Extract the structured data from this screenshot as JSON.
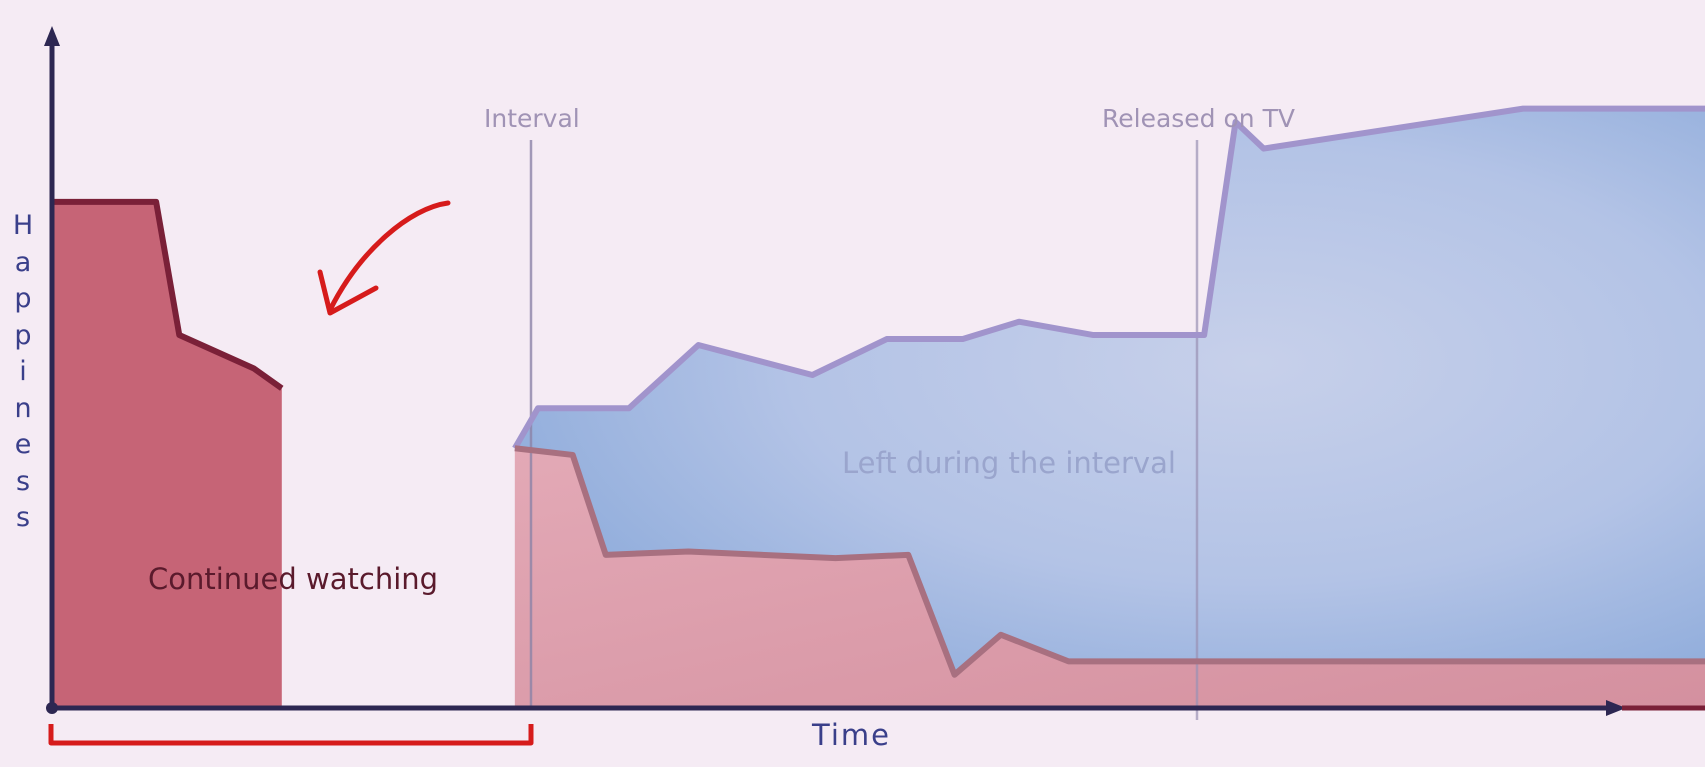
{
  "chart_data": {
    "type": "area",
    "xlabel": "Time",
    "ylabel": "Happiness",
    "annotations": [
      "Interval",
      "Released on TV"
    ],
    "regions": {
      "continued": "Continued watching",
      "left": "Left during the interval"
    },
    "series": [
      {
        "key": "continued",
        "x": [
          0,
          6.3,
          7.7,
          12.2,
          13.9,
          13.9,
          14.3,
          19.1,
          22.4,
          26.8,
          33.1,
          36.1,
          58.6,
          68.4,
          80.6,
          84.4,
          100
        ],
        "values": [
          76,
          76,
          56,
          51,
          48,
          36,
          31.5,
          19,
          13,
          7,
          9.5,
          12,
          6.3,
          5.4,
          7.7,
          5.9,
          6.5
        ]
      },
      {
        "key": "continued_after",
        "x": [
          28,
          31.5,
          33.5,
          38.5,
          47.4,
          51.8,
          54.6,
          57.4,
          61.5,
          70.1,
          71.6,
          72.1,
          100
        ],
        "values": [
          39,
          38,
          23,
          23.5,
          22.5,
          23,
          5,
          11,
          7,
          7,
          7,
          7,
          7
        ]
      },
      {
        "key": "left",
        "x": [
          28,
          29.4,
          34.9,
          39.1,
          46,
          50.5,
          55.1,
          58.5,
          63,
          67.4,
          69.7,
          71.6,
          73.3,
          89,
          100
        ],
        "values": [
          39,
          45,
          45,
          54.5,
          50,
          55.4,
          55.4,
          58,
          56,
          56,
          56,
          88,
          84,
          90,
          90
        ]
      }
    ]
  },
  "colors": {
    "continued_fill": "#c66476",
    "continued_stroke": "#7a2038",
    "after_fill": "#dca2b0",
    "after_stroke": "#a8707e",
    "left_fill": "#aabde3",
    "left_stroke": "#9a8fc5",
    "axis": "#2d2752",
    "marker": "#d61b1b"
  }
}
